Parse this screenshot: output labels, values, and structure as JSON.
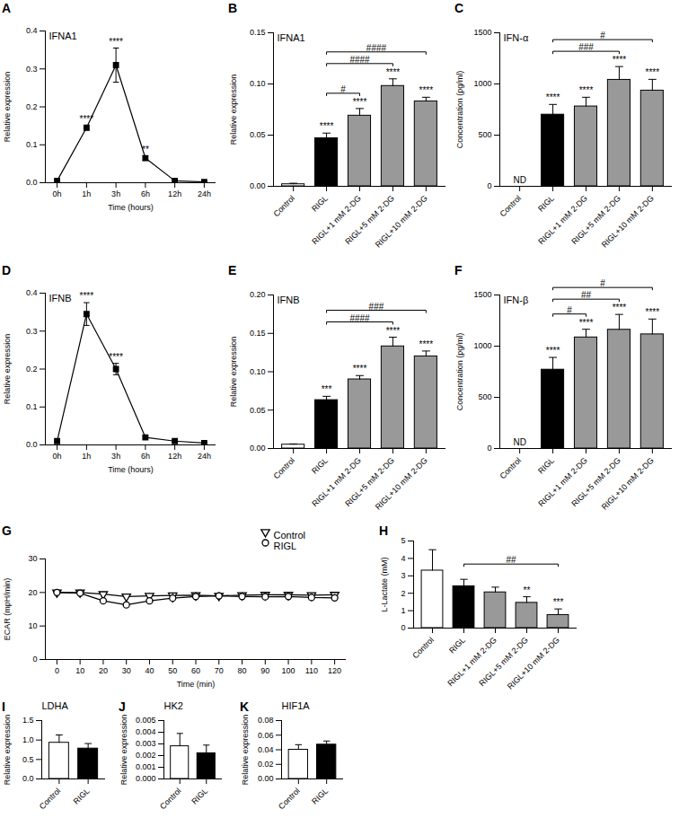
{
  "chart_data": [
    {
      "type": "line",
      "title": "A",
      "subtitle": "IFNA1",
      "x_label": "Time (hours)",
      "y_label": "Relative expression",
      "categories": [
        "0h",
        "1h",
        "3h",
        "6h",
        "12h",
        "24h"
      ],
      "values": [
        0.005,
        0.145,
        0.31,
        0.065,
        0.005,
        0.002
      ],
      "errors": [
        0.003,
        0.006,
        0.045,
        0.006,
        0.003,
        0.002
      ],
      "significance": [
        null,
        "****",
        "****",
        "**",
        null,
        null
      ],
      "color": "#000000",
      "marker": "square",
      "ylim": [
        0,
        0.4
      ],
      "yticks": [
        {
          "value": 0,
          "label": "0.0"
        },
        0.1,
        0.2,
        0.3,
        0.4
      ]
    },
    {
      "type": "bar",
      "title": "B",
      "subtitle": "IFNA1",
      "y_label": "Relative expression",
      "categories": [
        "Control",
        "RIGL",
        "RIGL+1 mM 2-DG",
        "RIGL+5 mM 2-DG",
        "RIGL+10 mM 2-DG"
      ],
      "values": [
        0.002,
        0.047,
        0.069,
        0.098,
        0.083
      ],
      "errors": [
        0.001,
        0.005,
        0.007,
        0.007,
        0.004
      ],
      "colors": [
        "#ffffff",
        "#000000",
        "#999999",
        "#999999",
        "#999999"
      ],
      "significance": [
        null,
        "****",
        "****",
        "****",
        "****"
      ],
      "comparisons": [
        {
          "from": "RIGL",
          "to": "RIGL+1 mM 2-DG",
          "label": "#"
        },
        {
          "from": "RIGL",
          "to": "RIGL+5 mM 2-DG",
          "label": "####"
        },
        {
          "from": "RIGL",
          "to": "RIGL+10 mM 2-DG",
          "label": "####"
        }
      ],
      "ylim": [
        0,
        0.15
      ],
      "yticks": [
        {
          "value": 0,
          "label": "0.00"
        },
        0.05,
        {
          "value": 0.1,
          "label": "0.10"
        },
        0.15
      ]
    },
    {
      "type": "bar",
      "title": "C",
      "subtitle": "IFN-α",
      "y_label": "Concentration (pg/ml)",
      "categories": [
        "Control",
        "RIGL",
        "RIGL+1 mM 2-DG",
        "RIGL+5 mM 2-DG",
        "RIGL+10 mM 2-DG"
      ],
      "values": [
        null,
        700,
        780,
        1040,
        935
      ],
      "value_labels": [
        "ND",
        null,
        null,
        null,
        null
      ],
      "errors": [
        null,
        100,
        90,
        130,
        110
      ],
      "colors": [
        "#ffffff",
        "#000000",
        "#999999",
        "#999999",
        "#999999"
      ],
      "significance": [
        null,
        "****",
        "****",
        "****",
        "****"
      ],
      "comparisons": [
        {
          "from": "RIGL",
          "to": "RIGL+5 mM 2-DG",
          "label": "###"
        },
        {
          "from": "RIGL",
          "to": "RIGL+10 mM 2-DG",
          "label": "#"
        }
      ],
      "ylim": [
        0,
        1500
      ],
      "yticks": [
        0,
        500,
        1000,
        1500
      ]
    },
    {
      "type": "line",
      "title": "D",
      "subtitle": "IFNB",
      "x_label": "Time (hours)",
      "y_label": "Relative expression",
      "categories": [
        "0h",
        "1h",
        "3h",
        "6h",
        "12h",
        "24h"
      ],
      "values": [
        0.01,
        0.345,
        0.2,
        0.02,
        0.01,
        0.005
      ],
      "errors": [
        0.004,
        0.03,
        0.015,
        0.004,
        0.003,
        0.002
      ],
      "significance": [
        null,
        "****",
        "****",
        null,
        null,
        null
      ],
      "color": "#000000",
      "marker": "square",
      "ylim": [
        0,
        0.4
      ],
      "yticks": [
        {
          "value": 0,
          "label": "0.0"
        },
        0.1,
        0.2,
        0.3,
        0.4
      ]
    },
    {
      "type": "bar",
      "title": "E",
      "subtitle": "IFNB",
      "y_label": "Relative expression",
      "categories": [
        "Control",
        "RIGL",
        "RIGL+1 mM 2-DG",
        "RIGL+5 mM 2-DG",
        "RIGL+10 mM 2-DG"
      ],
      "values": [
        0.005,
        0.063,
        0.09,
        0.133,
        0.12
      ],
      "errors": [
        0.001,
        0.005,
        0.005,
        0.012,
        0.007
      ],
      "colors": [
        "#ffffff",
        "#000000",
        "#999999",
        "#999999",
        "#999999"
      ],
      "significance": [
        null,
        "***",
        "****",
        "****",
        "****"
      ],
      "comparisons": [
        {
          "from": "RIGL",
          "to": "RIGL+5 mM 2-DG",
          "label": "####"
        },
        {
          "from": "RIGL",
          "to": "RIGL+10 mM 2-DG",
          "label": "###"
        }
      ],
      "ylim": [
        0,
        0.2
      ],
      "yticks": [
        {
          "value": 0,
          "label": "0.00"
        },
        0.05,
        {
          "value": 0.1,
          "label": "0.10"
        },
        0.15,
        {
          "value": 0.2,
          "label": "0.20"
        }
      ]
    },
    {
      "type": "bar",
      "title": "F",
      "subtitle": "IFN-β",
      "y_label": "Concentration (pg/ml)",
      "categories": [
        "Control",
        "RIGL",
        "RIGL+1 mM 2-DG",
        "RIGL+5 mM 2-DG",
        "RIGL+10 mM 2-DG"
      ],
      "values": [
        null,
        770,
        1085,
        1160,
        1115
      ],
      "value_labels": [
        "ND",
        null,
        null,
        null,
        null
      ],
      "errors": [
        null,
        120,
        80,
        150,
        150
      ],
      "colors": [
        "#ffffff",
        "#000000",
        "#999999",
        "#999999",
        "#999999"
      ],
      "significance": [
        null,
        "****",
        "****",
        "****",
        "****"
      ],
      "comparisons": [
        {
          "from": "RIGL",
          "to": "RIGL+1 mM 2-DG",
          "label": "#"
        },
        {
          "from": "RIGL",
          "to": "RIGL+5 mM 2-DG",
          "label": "##"
        },
        {
          "from": "RIGL",
          "to": "RIGL+10 mM 2-DG",
          "label": "#"
        }
      ],
      "ylim": [
        0,
        1500
      ],
      "yticks": [
        0,
        500,
        1000,
        1500
      ]
    },
    {
      "type": "line",
      "title": "G",
      "x_label": "Time (min)",
      "y_label": "ECAR (mpH/min)",
      "x": [
        0,
        10,
        20,
        30,
        40,
        50,
        60,
        70,
        80,
        90,
        100,
        110,
        120
      ],
      "series": [
        {
          "name": "Control",
          "color": "#000000",
          "marker": "triangle-down",
          "values": [
            20,
            20,
            19.5,
            18.8,
            19,
            19.1,
            19.2,
            19,
            19.2,
            19.3,
            19.3,
            19.2,
            19.3
          ],
          "errors": [
            0.8,
            0.8,
            0.8,
            0.8,
            0.8,
            0.8,
            0.8,
            0.8,
            0.8,
            0.8,
            0.8,
            0.8,
            0.8
          ]
        },
        {
          "name": "RIGL",
          "color": "#000000",
          "marker": "circle",
          "values": [
            20,
            19.8,
            17.5,
            16.3,
            17.5,
            18.3,
            18.8,
            19,
            18.8,
            18.7,
            18.8,
            18.5,
            18.4
          ],
          "errors": [
            0.9,
            0.9,
            1,
            0.8,
            1,
            1.4,
            1.3,
            1.2,
            1.2,
            1.2,
            1.2,
            1.1,
            1.1
          ]
        }
      ],
      "legend": "top-right",
      "xlim": [
        -5,
        125
      ],
      "xticks": [
        0,
        10,
        20,
        30,
        40,
        50,
        60,
        70,
        80,
        90,
        100,
        110,
        120
      ],
      "ylim": [
        0,
        30
      ],
      "yticks": [
        0,
        10,
        20,
        30
      ]
    },
    {
      "type": "bar",
      "title": "H",
      "y_label": "L-Lactate (mM)",
      "categories": [
        "Control",
        "RIGL",
        "RIGL+1 mM 2-DG",
        "RIGL+5 mM 2-DG",
        "RIGL+10 mM 2-DG"
      ],
      "values": [
        3.3,
        2.4,
        2.05,
        1.45,
        0.75
      ],
      "errors": [
        1.2,
        0.4,
        0.3,
        0.35,
        0.35
      ],
      "colors": [
        "#ffffff",
        "#000000",
        "#999999",
        "#999999",
        "#999999"
      ],
      "significance": [
        null,
        null,
        null,
        "**",
        "***"
      ],
      "comparisons": [
        {
          "from": "RIGL",
          "to": "RIGL+10 mM 2-DG",
          "label": "##"
        }
      ],
      "ylim": [
        0,
        5
      ],
      "yticks": [
        0,
        1,
        2,
        3,
        4,
        5
      ]
    },
    {
      "type": "bar",
      "title": "I",
      "subtitle": "LDHA",
      "y_label": "Relative expression",
      "categories": [
        "Control",
        "RIGL"
      ],
      "values": [
        0.93,
        0.78
      ],
      "errors": [
        0.2,
        0.13
      ],
      "colors": [
        "#ffffff",
        "#000000"
      ],
      "ylim": [
        0,
        1.5
      ],
      "yticks": [
        {
          "value": 0,
          "label": "0.0"
        },
        0.5,
        {
          "value": 1,
          "label": "1.0"
        },
        1.5
      ]
    },
    {
      "type": "bar",
      "title": "J",
      "subtitle": "HK2",
      "y_label": "Relative expression",
      "categories": [
        "Control",
        "RIGL"
      ],
      "values": [
        0.0028,
        0.0022
      ],
      "errors": [
        0.0011,
        0.0007
      ],
      "colors": [
        "#ffffff",
        "#000000"
      ],
      "ylim": [
        0,
        0.005
      ],
      "yticks": [
        {
          "value": 0,
          "label": "0.000"
        },
        0.001,
        0.002,
        0.003,
        0.004,
        0.005
      ]
    },
    {
      "type": "bar",
      "title": "K",
      "subtitle": "HIF1A",
      "y_label": "Relative expression",
      "categories": [
        "Control",
        "RIGL"
      ],
      "values": [
        0.04,
        0.047
      ],
      "errors": [
        0.007,
        0.005
      ],
      "colors": [
        "#ffffff",
        "#000000"
      ],
      "ylim": [
        0,
        0.08
      ],
      "yticks": [
        {
          "value": 0,
          "label": "0.00"
        },
        0.02,
        0.04,
        0.06,
        0.08
      ]
    }
  ]
}
